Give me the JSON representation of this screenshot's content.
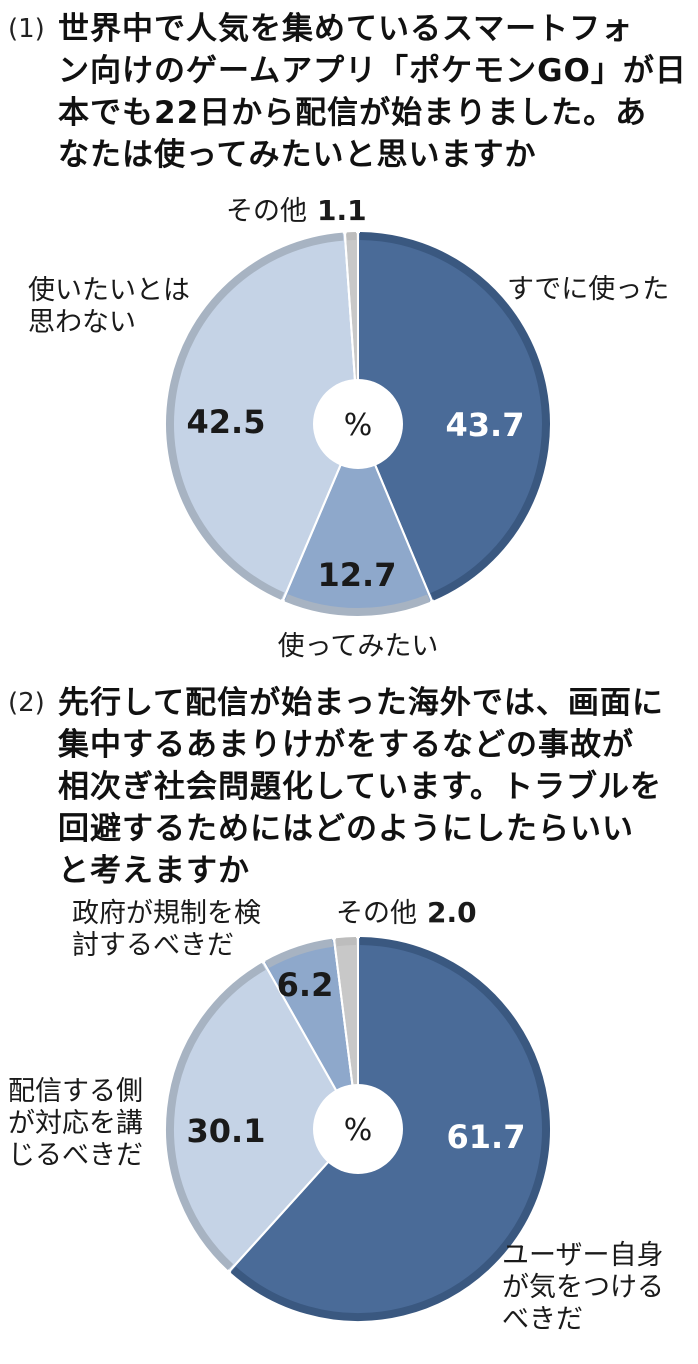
{
  "questions": [
    {
      "number": "(1)",
      "text_lines": [
        "世界中で人気を集めているスマートフォ",
        "ン向けのゲームアプリ「ポケモンGO」が日",
        "本でも22日から配信が始まりました。あ",
        "なたは使ってみたいと思いますか"
      ]
    },
    {
      "number": "(2)",
      "text_lines": [
        "先行して配信が始まった海外では、画面に",
        "集中するあまりけがをするなどの事故が",
        "相次ぎ社会問題化しています。トラブルを",
        "回避するためにはどのようにしたらいい",
        "と考えますか"
      ]
    }
  ],
  "colors": {
    "dark": "#4a6b98",
    "mid": "#8ea8cb",
    "light": "#c5d3e6",
    "gray": "#c8c8c8",
    "outer_dark": "#3a5880",
    "outer_light": "#a7b3c2",
    "text_white": "#ffffff",
    "text_dark": "#1a1a1a"
  },
  "center_label": "%",
  "chart_data": [
    {
      "type": "pie",
      "title": "あなたは使ってみたいと思いますか",
      "unit": "%",
      "slices": [
        {
          "label": "すでに使った",
          "value": 43.7,
          "value_text": "43.7"
        },
        {
          "label": "使ってみたい",
          "value": 12.7,
          "value_text": "12.7"
        },
        {
          "label": "使いたいとは思わない",
          "label_lines": [
            "使いたいとは",
            "思わない"
          ],
          "value": 42.5,
          "value_text": "42.5"
        },
        {
          "label": "その他",
          "value": 1.1,
          "value_text": "1.1"
        }
      ]
    },
    {
      "type": "pie",
      "title": "トラブルを回避するためにはどのようにしたらいいと考えますか",
      "unit": "%",
      "slices": [
        {
          "label": "ユーザー自身が気をつけるべきだ",
          "label_lines": [
            "ユーザー自身",
            "が気をつける",
            "べきだ"
          ],
          "value": 61.7,
          "value_text": "61.7"
        },
        {
          "label": "配信する側が対応を講じるべきだ",
          "label_lines": [
            "配信する側",
            "が対応を講",
            "じるべきだ"
          ],
          "value": 30.1,
          "value_text": "30.1"
        },
        {
          "label": "政府が規制を検討するべきだ",
          "label_lines": [
            "政府が規制を検",
            "討するべきだ"
          ],
          "value": 6.2,
          "value_text": "6.2"
        },
        {
          "label": "その他",
          "value": 2.0,
          "value_text": "2.0"
        }
      ]
    }
  ]
}
